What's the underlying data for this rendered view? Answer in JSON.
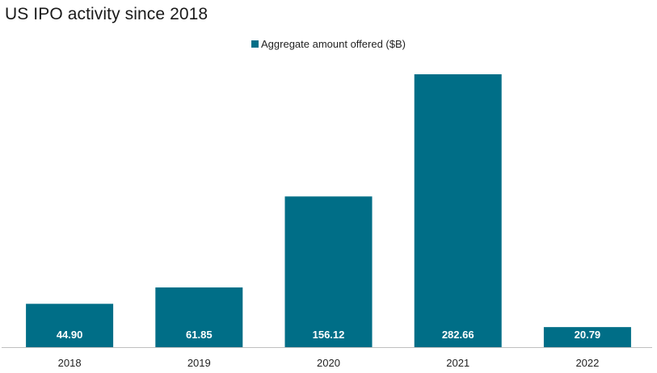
{
  "chart_data": {
    "type": "bar",
    "title": "US IPO activity since 2018",
    "categories": [
      "2018",
      "2019",
      "2020",
      "2021",
      "2022"
    ],
    "series": [
      {
        "name": "Aggregate amount offered ($B)",
        "values": [
          44.9,
          61.85,
          156.12,
          282.66,
          20.79
        ],
        "labels": [
          "44.90",
          "61.85",
          "156.12",
          "282.66",
          "20.79"
        ],
        "color": "#006e87"
      }
    ],
    "ylim": [
      0,
      300
    ],
    "grid": false,
    "legend_position": "top-center",
    "data_label_color": "#ffffff",
    "axis_color": "#bfbfbf"
  }
}
